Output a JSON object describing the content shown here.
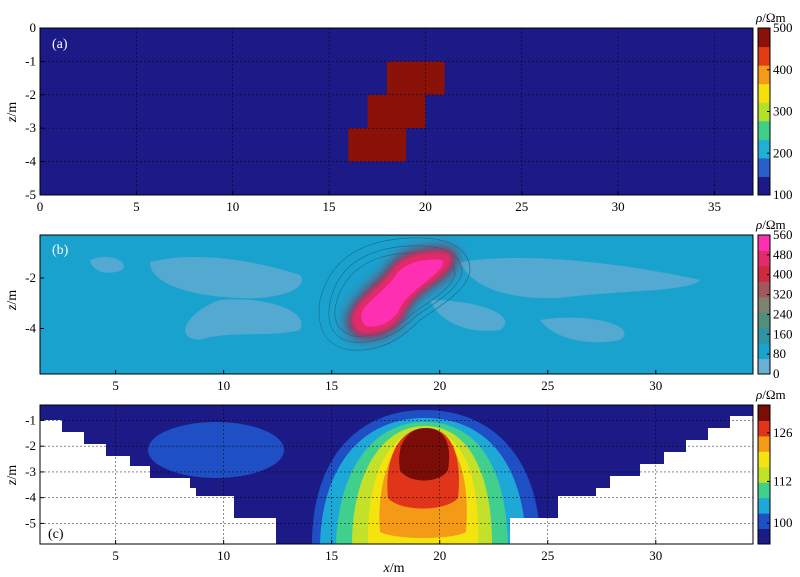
{
  "chart_data": [
    {
      "type": "heatmap",
      "panel_label": "(a)",
      "description_kind": "true resistivity model",
      "xlim": [
        0,
        37
      ],
      "ylim": [
        -5,
        0
      ],
      "x_ticks": [
        "0",
        "5",
        "10",
        "15",
        "20",
        "25",
        "30",
        "35"
      ],
      "x_tick_values": [
        0,
        5,
        10,
        15,
        20,
        25,
        30,
        35
      ],
      "y_ticks": [
        "0",
        "-1",
        "-2",
        "-3",
        "-4",
        "-5"
      ],
      "y_tick_values": [
        0,
        -1,
        -2,
        -3,
        -4,
        -5
      ],
      "ylabel_var": "z",
      "ylabel_unit": "/m",
      "grid": true,
      "background_value": 100,
      "anomaly_value": 500,
      "anomaly_blocks": [
        {
          "x0": 18,
          "x1": 21,
          "z0": -1,
          "z1": -2
        },
        {
          "x0": 17,
          "x1": 20,
          "z0": -2,
          "z1": -3
        },
        {
          "x0": 16,
          "x1": 19,
          "z0": -3,
          "z1": -4
        }
      ],
      "colorbar": {
        "title_var": "ρ",
        "title_unit": "/Ωm",
        "min": 100,
        "max": 500,
        "ticks": [
          "100",
          "200",
          "300",
          "400",
          "500"
        ],
        "tick_values": [
          100,
          200,
          300,
          400,
          500
        ],
        "colors": [
          "#1c1a86",
          "#2a5fc9",
          "#1fb0d6",
          "#3fcf86",
          "#b5e02a",
          "#f5e00c",
          "#f59a16",
          "#e23b12",
          "#8a1208"
        ]
      }
    },
    {
      "type": "heatmap",
      "panel_label": "(b)",
      "xlim": [
        1.5,
        34.5
      ],
      "ylim": [
        -5.8,
        -0.3
      ],
      "x_ticks": [
        "5",
        "10",
        "15",
        "20",
        "25",
        "30"
      ],
      "x_tick_values": [
        5,
        10,
        15,
        20,
        25,
        30
      ],
      "y_ticks": [
        "-2",
        "-4"
      ],
      "y_tick_values": [
        -2,
        -4
      ],
      "ylabel_var": "z",
      "ylabel_unit": "/m",
      "background_value": 100,
      "anomaly_peak_value": 560,
      "anomaly_center": {
        "x": 18.7,
        "z": -2.4
      },
      "colorbar": {
        "title_var": "ρ",
        "title_unit": "/Ωm",
        "min": 0,
        "max": 560,
        "ticks": [
          "0",
          "80",
          "160",
          "240",
          "320",
          "400",
          "480",
          "560"
        ],
        "tick_values": [
          0,
          80,
          160,
          240,
          320,
          400,
          480,
          560
        ],
        "colors": [
          "#6ab0d4",
          "#1aa2cf",
          "#2f93a3",
          "#4f8f7c",
          "#7e8070",
          "#a0585a",
          "#cc2a3e",
          "#e22b6a",
          "#ff2fb2"
        ]
      }
    },
    {
      "type": "heatmap",
      "panel_label": "(c)",
      "xlim": [
        1.5,
        34.5
      ],
      "ylim": [
        -5.8,
        -0.4
      ],
      "x_ticks": [
        "5",
        "10",
        "15",
        "20",
        "25",
        "30"
      ],
      "x_tick_values": [
        5,
        10,
        15,
        20,
        25,
        30
      ],
      "y_ticks": [
        "-1",
        "-2",
        "-3",
        "-4",
        "-5"
      ],
      "y_tick_values": [
        -1,
        -2,
        -3,
        -4,
        -5
      ],
      "xlabel_var": "x",
      "xlabel_unit": "/m",
      "ylabel_var": "z",
      "ylabel_unit": "/m",
      "grid": true,
      "peak_value": 130,
      "peak_center": {
        "x": 19.3,
        "z": -2.3
      },
      "colorbar": {
        "title_var": "ρ",
        "title_unit": "/Ωm",
        "min": 94,
        "max": 134,
        "ticks": [
          "100",
          "112",
          "126"
        ],
        "tick_values": [
          100,
          112,
          126
        ],
        "colors": [
          "#1c1a86",
          "#1f4fc4",
          "#1ea8d8",
          "#41cf8d",
          "#c3e12b",
          "#f3e30f",
          "#f49a16",
          "#e0351a",
          "#7a0d08"
        ]
      }
    }
  ]
}
